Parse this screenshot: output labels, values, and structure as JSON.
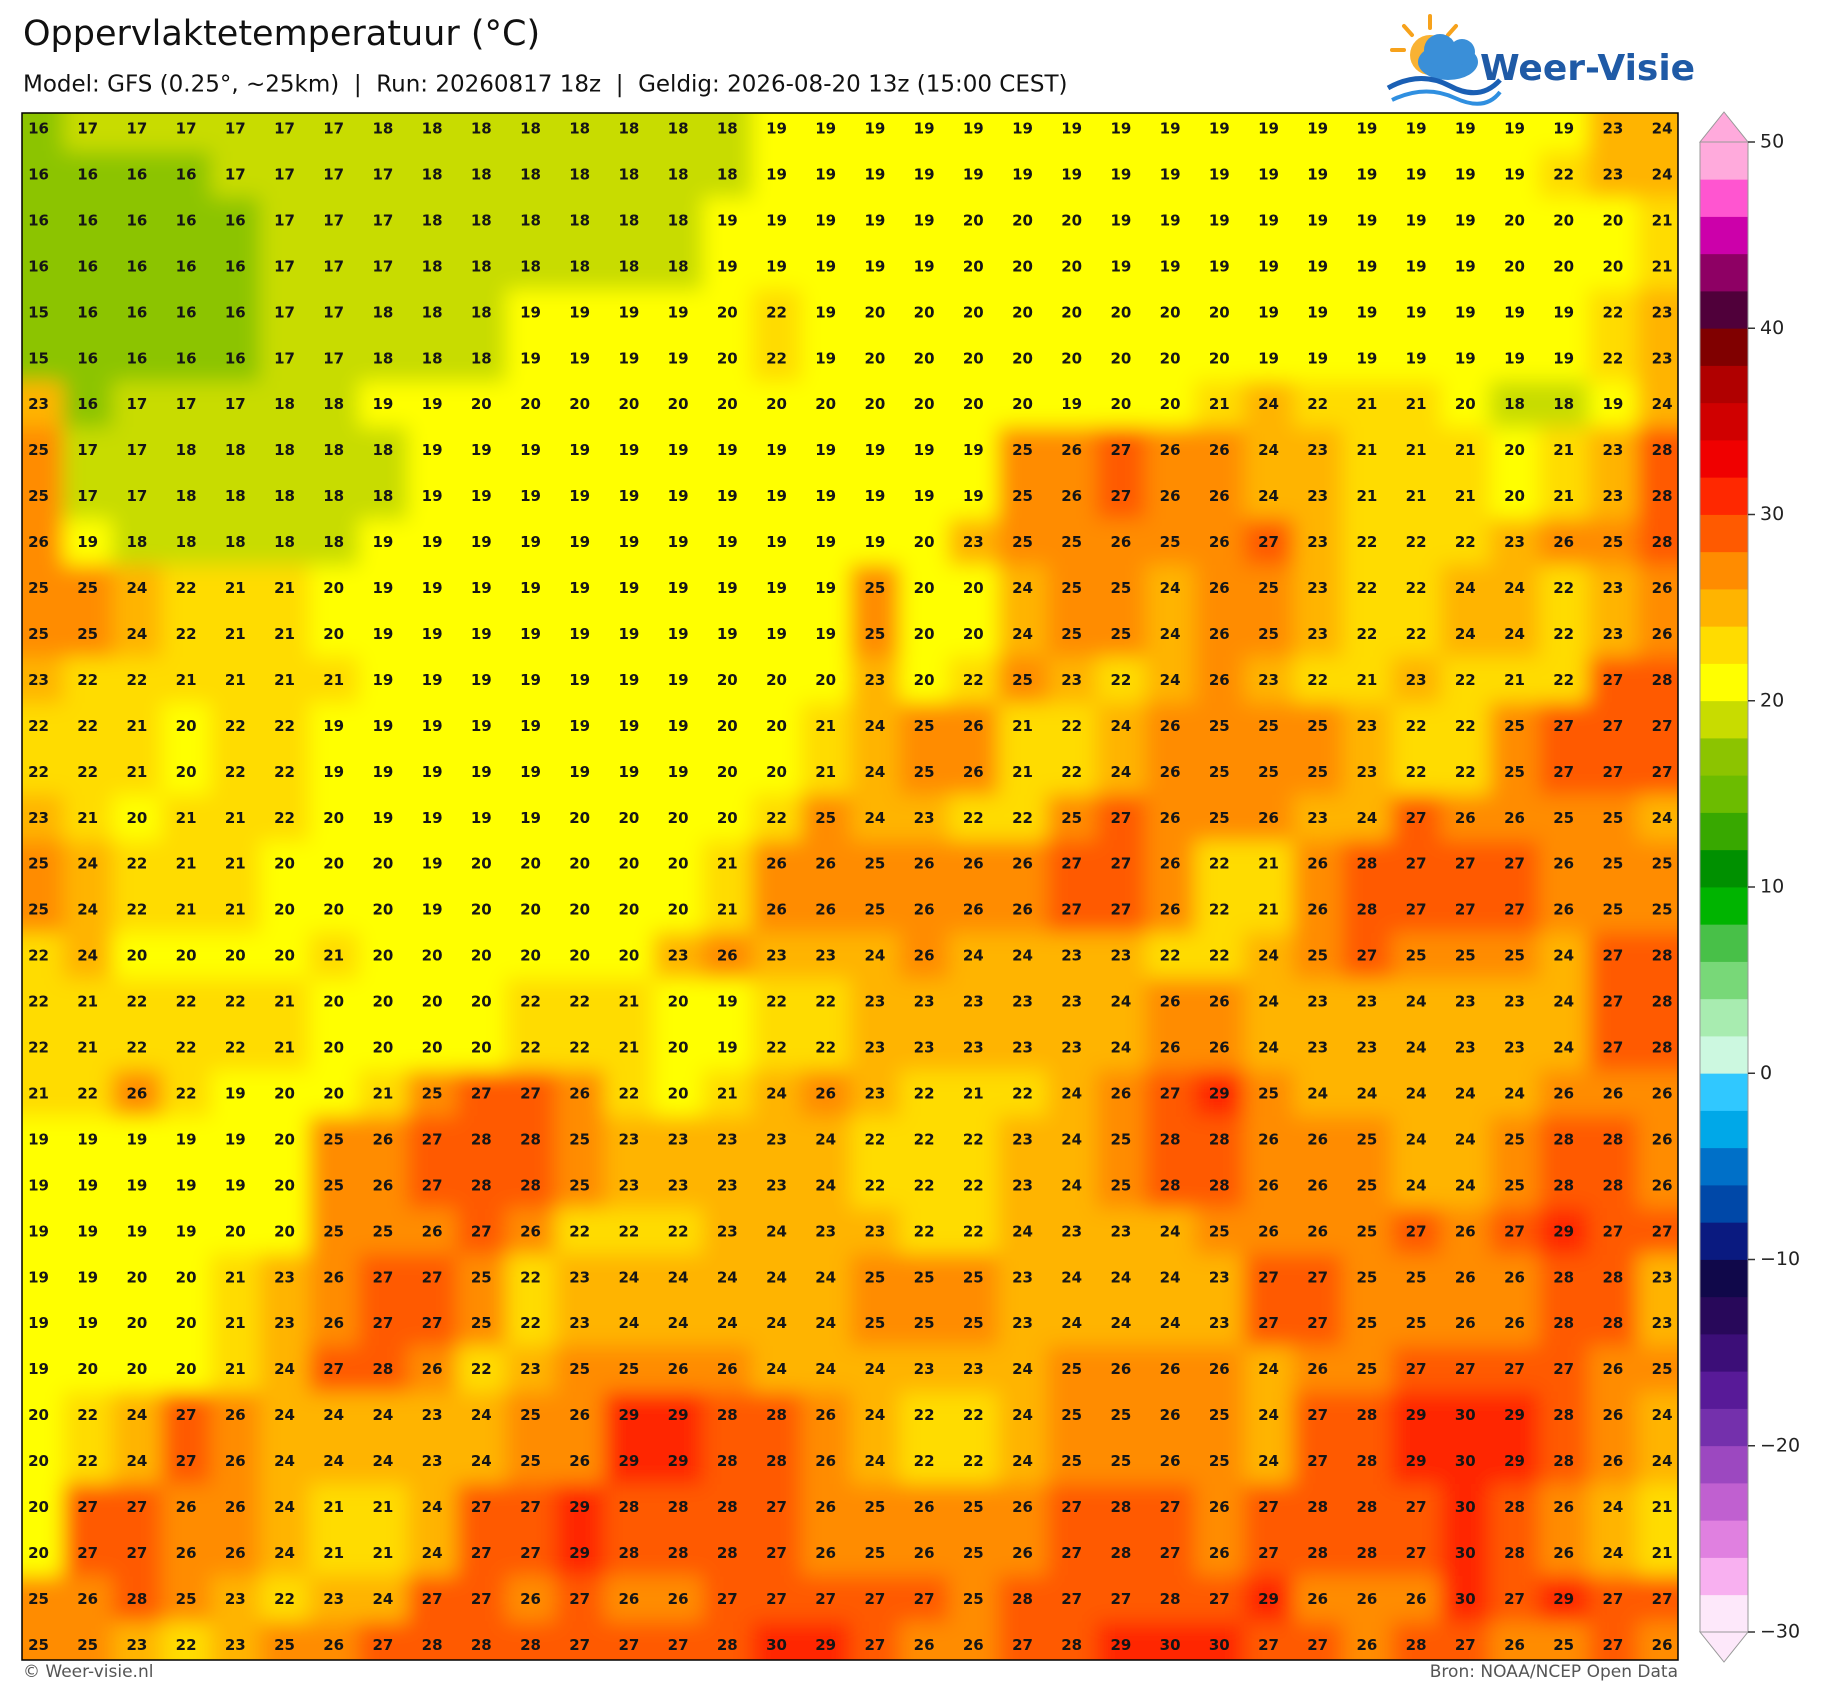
{
  "header": {
    "title": "Oppervlaktetemperatuur (°C)",
    "subtitle": "Model: GFS (0.25°, ~25km)  |  Run: 20260817 18z  |  Geldig: 2026-08-20 13z (15:00 CEST)"
  },
  "logo": "Weer-Visie",
  "grid": {
    "rows": [
      [
        16,
        17,
        17,
        17,
        17,
        17,
        17,
        18,
        18,
        18,
        18,
        18,
        18,
        18,
        18,
        19,
        19,
        19,
        19,
        19,
        19,
        19,
        19,
        19,
        19,
        19,
        19,
        19,
        19,
        19,
        19,
        19,
        23,
        24
      ],
      [
        16,
        16,
        16,
        16,
        17,
        17,
        17,
        17,
        18,
        18,
        18,
        18,
        18,
        18,
        18,
        19,
        19,
        19,
        19,
        19,
        19,
        19,
        19,
        19,
        19,
        19,
        19,
        19,
        19,
        19,
        19,
        22,
        23,
        24
      ],
      [
        16,
        16,
        16,
        16,
        16,
        17,
        17,
        17,
        18,
        18,
        18,
        18,
        18,
        18,
        19,
        19,
        19,
        19,
        19,
        20,
        20,
        20,
        19,
        19,
        19,
        19,
        19,
        19,
        19,
        19,
        20,
        20,
        20,
        21
      ],
      [
        16,
        16,
        16,
        16,
        16,
        17,
        17,
        17,
        18,
        18,
        18,
        18,
        18,
        18,
        19,
        19,
        19,
        19,
        19,
        20,
        20,
        20,
        19,
        19,
        19,
        19,
        19,
        19,
        19,
        19,
        20,
        20,
        20,
        21
      ],
      [
        15,
        16,
        16,
        16,
        16,
        17,
        17,
        18,
        18,
        18,
        19,
        19,
        19,
        19,
        20,
        22,
        19,
        20,
        20,
        20,
        20,
        20,
        20,
        20,
        20,
        19,
        19,
        19,
        19,
        19,
        19,
        19,
        22,
        23
      ],
      [
        15,
        16,
        16,
        16,
        16,
        17,
        17,
        18,
        18,
        18,
        19,
        19,
        19,
        19,
        20,
        22,
        19,
        20,
        20,
        20,
        20,
        20,
        20,
        20,
        20,
        19,
        19,
        19,
        19,
        19,
        19,
        19,
        22,
        23
      ],
      [
        23,
        16,
        17,
        17,
        17,
        18,
        18,
        19,
        19,
        20,
        20,
        20,
        20,
        20,
        20,
        20,
        20,
        20,
        20,
        20,
        20,
        19,
        20,
        20,
        21,
        24,
        22,
        21,
        21,
        20,
        18,
        18,
        19,
        24
      ],
      [
        25,
        17,
        17,
        18,
        18,
        18,
        18,
        18,
        19,
        19,
        19,
        19,
        19,
        19,
        19,
        19,
        19,
        19,
        19,
        19,
        25,
        26,
        27,
        26,
        26,
        24,
        23,
        21,
        21,
        21,
        20,
        21,
        23,
        28
      ],
      [
        25,
        17,
        17,
        18,
        18,
        18,
        18,
        18,
        19,
        19,
        19,
        19,
        19,
        19,
        19,
        19,
        19,
        19,
        19,
        19,
        25,
        26,
        27,
        26,
        26,
        24,
        23,
        21,
        21,
        21,
        20,
        21,
        23,
        28
      ],
      [
        26,
        19,
        18,
        18,
        18,
        18,
        18,
        19,
        19,
        19,
        19,
        19,
        19,
        19,
        19,
        19,
        19,
        19,
        20,
        23,
        25,
        25,
        26,
        25,
        26,
        27,
        23,
        22,
        22,
        22,
        23,
        26,
        25,
        28
      ],
      [
        25,
        25,
        24,
        22,
        21,
        21,
        20,
        19,
        19,
        19,
        19,
        19,
        19,
        19,
        19,
        19,
        19,
        25,
        20,
        20,
        24,
        25,
        25,
        24,
        26,
        25,
        23,
        22,
        22,
        24,
        24,
        22,
        23,
        26
      ],
      [
        25,
        25,
        24,
        22,
        21,
        21,
        20,
        19,
        19,
        19,
        19,
        19,
        19,
        19,
        19,
        19,
        19,
        25,
        20,
        20,
        24,
        25,
        25,
        24,
        26,
        25,
        23,
        22,
        22,
        24,
        24,
        22,
        23,
        26
      ],
      [
        23,
        22,
        22,
        21,
        21,
        21,
        21,
        19,
        19,
        19,
        19,
        19,
        19,
        19,
        20,
        20,
        20,
        23,
        20,
        22,
        25,
        23,
        22,
        24,
        26,
        23,
        22,
        21,
        23,
        22,
        21,
        22,
        27,
        28
      ],
      [
        22,
        22,
        21,
        20,
        22,
        22,
        19,
        19,
        19,
        19,
        19,
        19,
        19,
        19,
        20,
        20,
        21,
        24,
        25,
        26,
        21,
        22,
        24,
        26,
        25,
        25,
        25,
        23,
        22,
        22,
        25,
        27,
        27,
        27
      ],
      [
        22,
        22,
        21,
        20,
        22,
        22,
        19,
        19,
        19,
        19,
        19,
        19,
        19,
        19,
        20,
        20,
        21,
        24,
        25,
        26,
        21,
        22,
        24,
        26,
        25,
        25,
        25,
        23,
        22,
        22,
        25,
        27,
        27,
        27
      ],
      [
        23,
        21,
        20,
        21,
        21,
        22,
        20,
        19,
        19,
        19,
        19,
        20,
        20,
        20,
        20,
        22,
        25,
        24,
        23,
        22,
        22,
        25,
        27,
        26,
        25,
        26,
        23,
        24,
        27,
        26,
        26,
        25,
        25,
        24
      ],
      [
        25,
        24,
        22,
        21,
        21,
        20,
        20,
        20,
        19,
        20,
        20,
        20,
        20,
        20,
        21,
        26,
        26,
        25,
        26,
        26,
        26,
        27,
        27,
        26,
        22,
        21,
        26,
        28,
        27,
        27,
        27,
        26,
        25,
        25
      ],
      [
        25,
        24,
        22,
        21,
        21,
        20,
        20,
        20,
        19,
        20,
        20,
        20,
        20,
        20,
        21,
        26,
        26,
        25,
        26,
        26,
        26,
        27,
        27,
        26,
        22,
        21,
        26,
        28,
        27,
        27,
        27,
        26,
        25,
        25
      ],
      [
        22,
        24,
        20,
        20,
        20,
        20,
        21,
        20,
        20,
        20,
        20,
        20,
        20,
        23,
        26,
        23,
        23,
        24,
        26,
        24,
        24,
        23,
        23,
        22,
        22,
        24,
        25,
        27,
        25,
        25,
        25,
        24,
        27,
        28
      ],
      [
        22,
        21,
        22,
        22,
        22,
        21,
        20,
        20,
        20,
        20,
        22,
        22,
        21,
        20,
        19,
        22,
        22,
        23,
        23,
        23,
        23,
        23,
        24,
        26,
        26,
        24,
        23,
        23,
        24,
        23,
        23,
        24,
        27,
        28
      ],
      [
        22,
        21,
        22,
        22,
        22,
        21,
        20,
        20,
        20,
        20,
        22,
        22,
        21,
        20,
        19,
        22,
        22,
        23,
        23,
        23,
        23,
        23,
        24,
        26,
        26,
        24,
        23,
        23,
        24,
        23,
        23,
        24,
        27,
        28
      ],
      [
        21,
        22,
        26,
        22,
        19,
        20,
        20,
        21,
        25,
        27,
        27,
        26,
        22,
        20,
        21,
        24,
        26,
        23,
        22,
        21,
        22,
        24,
        26,
        27,
        29,
        25,
        24,
        24,
        24,
        24,
        24,
        26,
        26,
        26
      ],
      [
        19,
        19,
        19,
        19,
        19,
        20,
        25,
        26,
        27,
        28,
        28,
        25,
        23,
        23,
        23,
        23,
        24,
        22,
        22,
        22,
        23,
        24,
        25,
        28,
        28,
        26,
        26,
        25,
        24,
        24,
        25,
        28,
        28,
        26
      ],
      [
        19,
        19,
        19,
        19,
        19,
        20,
        25,
        26,
        27,
        28,
        28,
        25,
        23,
        23,
        23,
        23,
        24,
        22,
        22,
        22,
        23,
        24,
        25,
        28,
        28,
        26,
        26,
        25,
        24,
        24,
        25,
        28,
        28,
        26
      ],
      [
        19,
        19,
        19,
        19,
        20,
        20,
        25,
        25,
        26,
        27,
        26,
        22,
        22,
        22,
        23,
        24,
        23,
        23,
        22,
        22,
        24,
        23,
        23,
        24,
        25,
        26,
        26,
        25,
        27,
        26,
        27,
        29,
        27,
        27
      ],
      [
        19,
        19,
        20,
        20,
        21,
        23,
        26,
        27,
        27,
        25,
        22,
        23,
        24,
        24,
        24,
        24,
        24,
        25,
        25,
        25,
        23,
        24,
        24,
        24,
        23,
        27,
        27,
        25,
        25,
        26,
        26,
        28,
        28,
        23
      ],
      [
        19,
        19,
        20,
        20,
        21,
        23,
        26,
        27,
        27,
        25,
        22,
        23,
        24,
        24,
        24,
        24,
        24,
        25,
        25,
        25,
        23,
        24,
        24,
        24,
        23,
        27,
        27,
        25,
        25,
        26,
        26,
        28,
        28,
        23
      ],
      [
        19,
        20,
        20,
        20,
        21,
        24,
        27,
        28,
        26,
        22,
        23,
        25,
        25,
        26,
        26,
        24,
        24,
        24,
        23,
        23,
        24,
        25,
        26,
        26,
        26,
        24,
        26,
        25,
        27,
        27,
        27,
        27,
        26,
        25
      ],
      [
        20,
        22,
        24,
        27,
        26,
        24,
        24,
        24,
        23,
        24,
        25,
        26,
        29,
        29,
        28,
        28,
        26,
        24,
        22,
        22,
        24,
        25,
        25,
        26,
        25,
        24,
        27,
        28,
        29,
        30,
        29,
        28,
        26,
        24
      ],
      [
        20,
        22,
        24,
        27,
        26,
        24,
        24,
        24,
        23,
        24,
        25,
        26,
        29,
        29,
        28,
        28,
        26,
        24,
        22,
        22,
        24,
        25,
        25,
        26,
        25,
        24,
        27,
        28,
        29,
        30,
        29,
        28,
        26,
        24
      ],
      [
        20,
        27,
        27,
        26,
        26,
        24,
        21,
        21,
        24,
        27,
        27,
        29,
        28,
        28,
        28,
        27,
        26,
        25,
        26,
        25,
        26,
        27,
        28,
        27,
        26,
        27,
        28,
        28,
        27,
        30,
        28,
        26,
        24,
        21
      ],
      [
        20,
        27,
        27,
        26,
        26,
        24,
        21,
        21,
        24,
        27,
        27,
        29,
        28,
        28,
        28,
        27,
        26,
        25,
        26,
        25,
        26,
        27,
        28,
        27,
        26,
        27,
        28,
        28,
        27,
        30,
        28,
        26,
        24,
        21
      ],
      [
        25,
        26,
        28,
        25,
        23,
        22,
        23,
        24,
        27,
        27,
        26,
        27,
        26,
        26,
        27,
        27,
        27,
        27,
        27,
        25,
        28,
        27,
        27,
        28,
        27,
        29,
        26,
        26,
        26,
        30,
        27,
        29,
        27,
        27
      ],
      [
        25,
        25,
        23,
        22,
        23,
        25,
        26,
        27,
        28,
        28,
        28,
        27,
        27,
        27,
        28,
        30,
        29,
        27,
        26,
        26,
        27,
        28,
        29,
        30,
        30,
        27,
        27,
        26,
        28,
        27,
        26,
        25,
        27,
        26
      ]
    ]
  },
  "colorbar": {
    "lim": [
      -30,
      50
    ],
    "ticks": [
      50,
      40,
      30,
      20,
      10,
      0,
      {
        "value": -10,
        "label": "−10"
      },
      {
        "value": -20,
        "label": "−20"
      },
      {
        "value": -30,
        "label": "−30"
      }
    ],
    "colors": [
      "#fde8fa",
      "#f8b0f0",
      "#e080e0",
      "#c060d0",
      "#9c48c0",
      "#7430ac",
      "#581a98",
      "#3c0e78",
      "#28085a",
      "#10084a",
      "#0a1a80",
      "#0048a8",
      "#0070c8",
      "#00a8e8",
      "#30c8ff",
      "#ccf8e0",
      "#a8ecb0",
      "#78d878",
      "#48c048",
      "#00b400",
      "#009000",
      "#38a800",
      "#6cbc00",
      "#8cc400",
      "#c8dc00",
      "#ffff00",
      "#ffdc00",
      "#ffb400",
      "#ff8c00",
      "#ff5a00",
      "#ff2800",
      "#f00000",
      "#d00000",
      "#b00000",
      "#800000",
      "#50003a",
      "#8e0064",
      "#cc00aa",
      "#ff55d0",
      "#ffaadc"
    ]
  },
  "footer": {
    "left": "© Weer-visie.nl",
    "right": "Bron: NOAA/NCEP Open Data"
  }
}
